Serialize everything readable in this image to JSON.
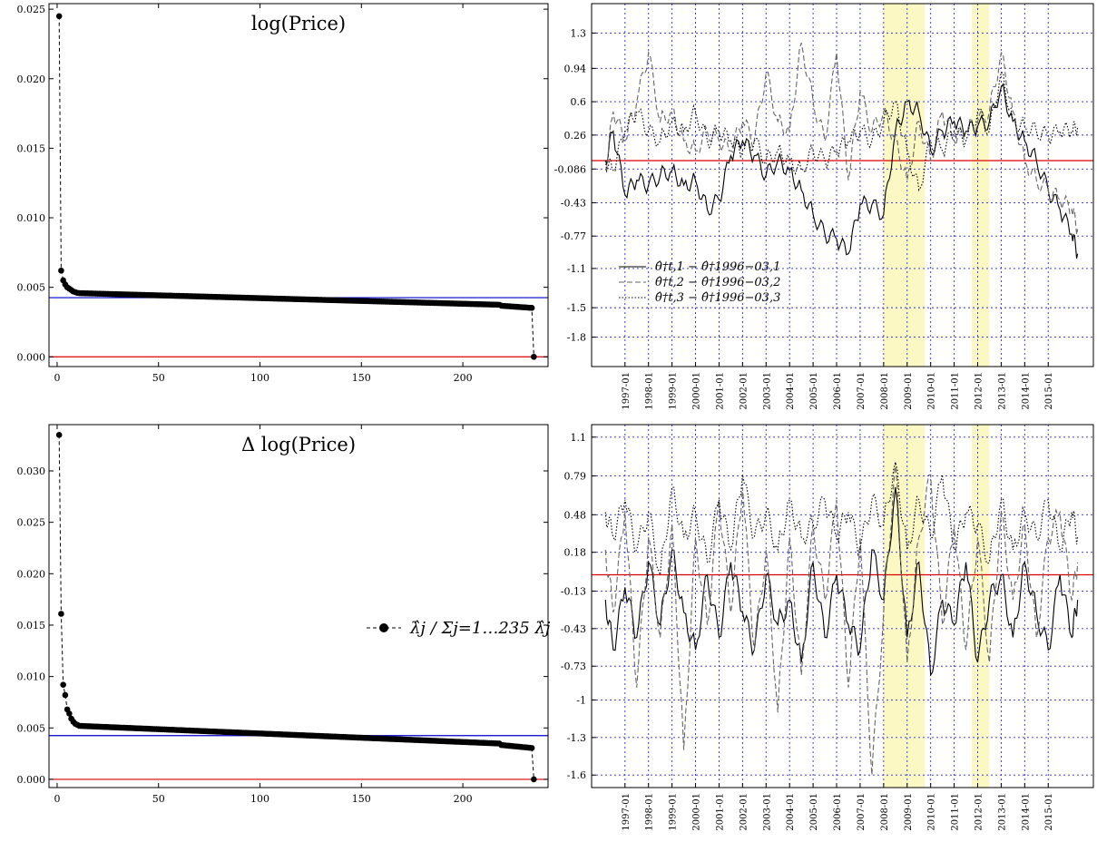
{
  "chart_data": [
    {
      "id": "top-left",
      "type": "scatter",
      "title": "log(Price)",
      "xlim": [
        -4,
        242
      ],
      "ylim": [
        -0.0007,
        0.0254
      ],
      "xticks": [
        0,
        50,
        100,
        150,
        200
      ],
      "yticks": [
        0.0,
        0.005,
        0.01,
        0.015,
        0.02,
        0.025
      ],
      "ytick_labels": [
        "0.000",
        "0.005",
        "0.010",
        "0.015",
        "0.020",
        "0.025"
      ],
      "n_points": 235,
      "eigen_ratios_head": [
        0.0245,
        0.0062,
        0.0055,
        0.0052,
        0.005,
        0.0049,
        0.0048,
        0.0047,
        0.00465,
        0.0046
      ],
      "plateau": {
        "from_index": 11,
        "start": 0.00458,
        "end": 0.00368,
        "last_before_drop": 0.00352
      },
      "last_value": 0.0,
      "hlines": [
        {
          "y": 0.004255,
          "color": "#0000cc"
        },
        {
          "y": 0.0,
          "color": "#dd0000"
        }
      ],
      "series_style": "dashed-with-dots"
    },
    {
      "id": "bottom-left",
      "type": "scatter",
      "title": "Δ log(Price)",
      "xlim": [
        -4,
        242
      ],
      "ylim": [
        -0.0008,
        0.0345
      ],
      "xticks": [
        0,
        50,
        100,
        150,
        200
      ],
      "yticks": [
        0.0,
        0.005,
        0.01,
        0.015,
        0.02,
        0.025,
        0.03
      ],
      "ytick_labels": [
        "0.000",
        "0.005",
        "0.010",
        "0.015",
        "0.020",
        "0.025",
        "0.030"
      ],
      "n_points": 235,
      "eigen_ratios_head": [
        0.0335,
        0.0161,
        0.0092,
        0.0082,
        0.0068,
        0.0064,
        0.0059,
        0.0056,
        0.0054,
        0.0053
      ],
      "plateau": {
        "from_index": 11,
        "start": 0.0052,
        "end": 0.00335,
        "last_before_drop": 0.00305
      },
      "last_value": 0.0,
      "hlines": [
        {
          "y": 0.004255,
          "color": "#0000cc"
        },
        {
          "y": 0.0,
          "color": "#dd0000"
        }
      ],
      "legend": {
        "label": "λ̂j / Σj=1…235 λ̂j",
        "position": "right"
      },
      "series_style": "dashed-with-dots"
    },
    {
      "id": "top-right",
      "type": "line",
      "xlim": [
        1995.58,
        2016.92
      ],
      "ylim": [
        -2.1,
        1.6
      ],
      "yticks": [
        1.3,
        0.94,
        0.6,
        0.26,
        -0.086,
        -0.43,
        -0.77,
        -1.1,
        -1.5,
        -1.8
      ],
      "ytick_labels": [
        "1.3",
        "0.94",
        "0.6",
        "0.26",
        "-0.086",
        "-0.43",
        "-0.77",
        "-1.1",
        "-1.5",
        "-1.8"
      ],
      "xtick_years": [
        1997,
        1998,
        1999,
        2000,
        2001,
        2002,
        2003,
        2004,
        2005,
        2006,
        2007,
        2008,
        2009,
        2010,
        2011,
        2012,
        2013,
        2014,
        2015
      ],
      "shaded": [
        [
          2008.0,
          2009.75
        ],
        [
          2011.75,
          2012.5
        ]
      ],
      "hline": {
        "y": 0.0,
        "color": "#dd0000"
      },
      "grid": true,
      "legend_position": "lower-left",
      "series": [
        {
          "name": "θ̂†t,1 − θ̂†1996−03,1",
          "style": "solid",
          "color": "#000000",
          "x": [
            1996.17,
            1996.5,
            1997.0,
            1997.5,
            1998.0,
            1998.5,
            1999.0,
            1999.5,
            2000.0,
            2000.5,
            2001.0,
            2001.5,
            2002.0,
            2002.5,
            2003.0,
            2003.5,
            2004.0,
            2004.5,
            2005.0,
            2005.5,
            2006.0,
            2006.5,
            2007.0,
            2007.5,
            2008.0,
            2008.5,
            2009.0,
            2009.5,
            2010.0,
            2010.5,
            2011.0,
            2011.5,
            2012.0,
            2012.5,
            2013.0,
            2013.5,
            2014.0,
            2014.5,
            2015.0,
            2015.5,
            2016.0,
            2016.25
          ],
          "y": [
            0.0,
            0.3,
            -0.35,
            -0.2,
            -0.25,
            -0.15,
            -0.1,
            -0.25,
            -0.2,
            -0.5,
            -0.4,
            0.05,
            0.2,
            0.05,
            -0.15,
            0.0,
            -0.1,
            -0.3,
            -0.55,
            -0.75,
            -0.8,
            -0.95,
            -0.45,
            -0.45,
            -0.55,
            0.3,
            0.6,
            0.5,
            0.1,
            0.3,
            0.4,
            0.3,
            0.35,
            0.4,
            0.75,
            0.4,
            0.2,
            0.0,
            -0.3,
            -0.5,
            -0.75,
            -0.95
          ]
        },
        {
          "name": "θ̂†t,2 − θ̂†1996−03,2",
          "style": "dashed",
          "color": "#666666",
          "x": [
            1996.17,
            1996.5,
            1997.0,
            1997.5,
            1998.0,
            1998.5,
            1999.0,
            1999.5,
            2000.0,
            2000.5,
            2001.0,
            2001.5,
            2002.0,
            2002.5,
            2003.0,
            2003.5,
            2004.0,
            2004.5,
            2005.0,
            2005.5,
            2006.0,
            2006.5,
            2007.0,
            2007.5,
            2008.0,
            2008.5,
            2009.0,
            2009.5,
            2010.0,
            2010.5,
            2011.0,
            2011.5,
            2012.0,
            2012.5,
            2013.0,
            2013.5,
            2014.0,
            2014.5,
            2015.0,
            2015.5,
            2016.0,
            2016.25
          ],
          "y": [
            -0.1,
            0.5,
            0.2,
            0.6,
            1.1,
            0.4,
            0.5,
            0.2,
            0.1,
            0.3,
            0.2,
            0.1,
            0.4,
            0.2,
            0.9,
            0.4,
            0.3,
            1.2,
            0.6,
            0.2,
            1.1,
            -0.2,
            0.7,
            0.3,
            0.5,
            0.2,
            -0.2,
            0.4,
            0.0,
            0.5,
            0.2,
            0.3,
            0.4,
            0.5,
            1.1,
            0.5,
            0.0,
            -0.2,
            -0.3,
            -0.4,
            -0.5,
            -0.7
          ]
        },
        {
          "name": "θ̂†t,3 − θ̂†1996−03,3",
          "style": "dotted",
          "color": "#000000",
          "x": [
            1996.17,
            1996.5,
            1997.0,
            1997.5,
            1998.0,
            1998.5,
            1999.0,
            1999.5,
            2000.0,
            2000.5,
            2001.0,
            2001.5,
            2002.0,
            2002.5,
            2003.0,
            2003.5,
            2004.0,
            2004.5,
            2005.0,
            2005.5,
            2006.0,
            2006.5,
            2007.0,
            2007.5,
            2008.0,
            2008.5,
            2009.0,
            2009.5,
            2010.0,
            2010.5,
            2011.0,
            2011.5,
            2012.0,
            2012.5,
            2013.0,
            2013.5,
            2014.0,
            2014.5,
            2015.0,
            2015.5,
            2016.0,
            2016.25
          ],
          "y": [
            0.0,
            -0.1,
            0.3,
            0.5,
            0.3,
            0.2,
            0.4,
            0.3,
            0.5,
            0.2,
            0.3,
            0.2,
            0.1,
            0.2,
            0.0,
            0.1,
            0.0,
            -0.1,
            0.1,
            0.0,
            0.1,
            0.2,
            0.3,
            0.2,
            0.4,
            0.6,
            0.1,
            -0.3,
            0.2,
            0.1,
            0.3,
            0.2,
            0.5,
            0.3,
            0.9,
            0.4,
            0.35,
            0.3,
            0.25,
            0.3,
            0.3,
            0.35
          ]
        }
      ]
    },
    {
      "id": "bottom-right",
      "type": "line",
      "xlim": [
        1995.58,
        2016.92
      ],
      "ylim": [
        -1.7,
        1.2
      ],
      "yticks": [
        1.1,
        0.79,
        0.48,
        0.18,
        -0.13,
        -0.43,
        -0.73,
        -1,
        -1.3,
        -1.6
      ],
      "ytick_labels": [
        "1.1",
        "0.79",
        "0.48",
        "0.18",
        "-0.13",
        "-0.43",
        "-0.73",
        "-1",
        "-1.3",
        "-1.6"
      ],
      "xtick_years": [
        1997,
        1998,
        1999,
        2000,
        2001,
        2002,
        2003,
        2004,
        2005,
        2006,
        2007,
        2008,
        2009,
        2010,
        2011,
        2012,
        2013,
        2014,
        2015
      ],
      "shaded": [
        [
          2008.0,
          2009.75
        ],
        [
          2011.75,
          2012.5
        ]
      ],
      "hline": {
        "y": 0.0,
        "color": "#dd0000"
      },
      "grid": true,
      "series": [
        {
          "style": "solid",
          "color": "#000000",
          "x": [
            1996.17,
            1996.5,
            1997.0,
            1997.5,
            1998.0,
            1998.5,
            1999.0,
            1999.5,
            2000.0,
            2000.5,
            2001.0,
            2001.5,
            2002.0,
            2002.5,
            2003.0,
            2003.5,
            2004.0,
            2004.5,
            2005.0,
            2005.5,
            2006.0,
            2006.5,
            2007.0,
            2007.5,
            2008.0,
            2008.5,
            2009.0,
            2009.5,
            2010.0,
            2010.5,
            2011.0,
            2011.5,
            2012.0,
            2012.5,
            2013.0,
            2013.5,
            2014.0,
            2014.5,
            2015.0,
            2015.5,
            2016.0,
            2016.25
          ],
          "y": [
            -0.2,
            -0.6,
            -0.1,
            -0.5,
            0.1,
            -0.4,
            0.2,
            -0.3,
            -0.6,
            0.0,
            -0.5,
            0.1,
            -0.3,
            -0.6,
            0.0,
            -0.4,
            -0.2,
            -0.7,
            0.1,
            -0.5,
            0.0,
            -0.4,
            -0.6,
            0.2,
            -0.2,
            0.7,
            -0.5,
            0.1,
            -0.8,
            -0.2,
            -0.4,
            0.1,
            -0.7,
            -0.2,
            0.0,
            -0.5,
            0.1,
            -0.3,
            -0.6,
            0.0,
            -0.5,
            -0.2
          ]
        },
        {
          "style": "dashed",
          "color": "#666666",
          "x": [
            1996.17,
            1996.5,
            1997.0,
            1997.5,
            1998.0,
            1998.5,
            1999.0,
            1999.5,
            2000.0,
            2000.5,
            2001.0,
            2001.5,
            2002.0,
            2002.5,
            2003.0,
            2003.5,
            2004.0,
            2004.5,
            2005.0,
            2005.5,
            2006.0,
            2006.5,
            2007.0,
            2007.5,
            2008.0,
            2008.5,
            2009.0,
            2009.5,
            2010.0,
            2010.5,
            2011.0,
            2011.5,
            2012.0,
            2012.5,
            2013.0,
            2013.5,
            2014.0,
            2014.5,
            2015.0,
            2015.5,
            2016.0,
            2016.25
          ],
          "y": [
            0.2,
            -0.3,
            0.5,
            -0.9,
            0.3,
            -0.5,
            0.4,
            -1.4,
            0.3,
            -0.4,
            0.6,
            -0.3,
            0.7,
            -0.6,
            0.2,
            -1.1,
            0.3,
            -0.8,
            0.4,
            -0.2,
            0.6,
            -0.9,
            0.3,
            -1.6,
            -0.3,
            0.9,
            -0.7,
            0.3,
            0.8,
            -0.4,
            0.4,
            -0.6,
            0.3,
            -0.7,
            0.5,
            -0.2,
            0.4,
            -0.5,
            0.3,
            0.5,
            -0.2,
            0.1
          ]
        },
        {
          "style": "dotted",
          "color": "#000000",
          "x": [
            1996.17,
            1996.5,
            1997.0,
            1997.5,
            1998.0,
            1998.5,
            1999.0,
            1999.5,
            2000.0,
            2000.5,
            2001.0,
            2001.5,
            2002.0,
            2002.5,
            2003.0,
            2003.5,
            2004.0,
            2004.5,
            2005.0,
            2005.5,
            2006.0,
            2006.5,
            2007.0,
            2007.5,
            2008.0,
            2008.5,
            2009.0,
            2009.5,
            2010.0,
            2010.5,
            2011.0,
            2011.5,
            2012.0,
            2012.5,
            2013.0,
            2013.5,
            2014.0,
            2014.5,
            2015.0,
            2015.5,
            2016.0,
            2016.25
          ],
          "y": [
            0.5,
            0.3,
            0.6,
            0.2,
            0.5,
            0.0,
            0.7,
            0.3,
            0.5,
            0.1,
            0.6,
            0.2,
            0.8,
            0.3,
            0.5,
            0.2,
            0.6,
            0.3,
            0.4,
            0.6,
            0.3,
            0.5,
            0.2,
            0.6,
            0.4,
            0.9,
            0.2,
            0.6,
            0.3,
            0.8,
            0.2,
            0.5,
            0.4,
            0.1,
            0.6,
            0.2,
            0.5,
            0.3,
            0.6,
            0.2,
            0.5,
            0.3
          ]
        }
      ]
    }
  ]
}
